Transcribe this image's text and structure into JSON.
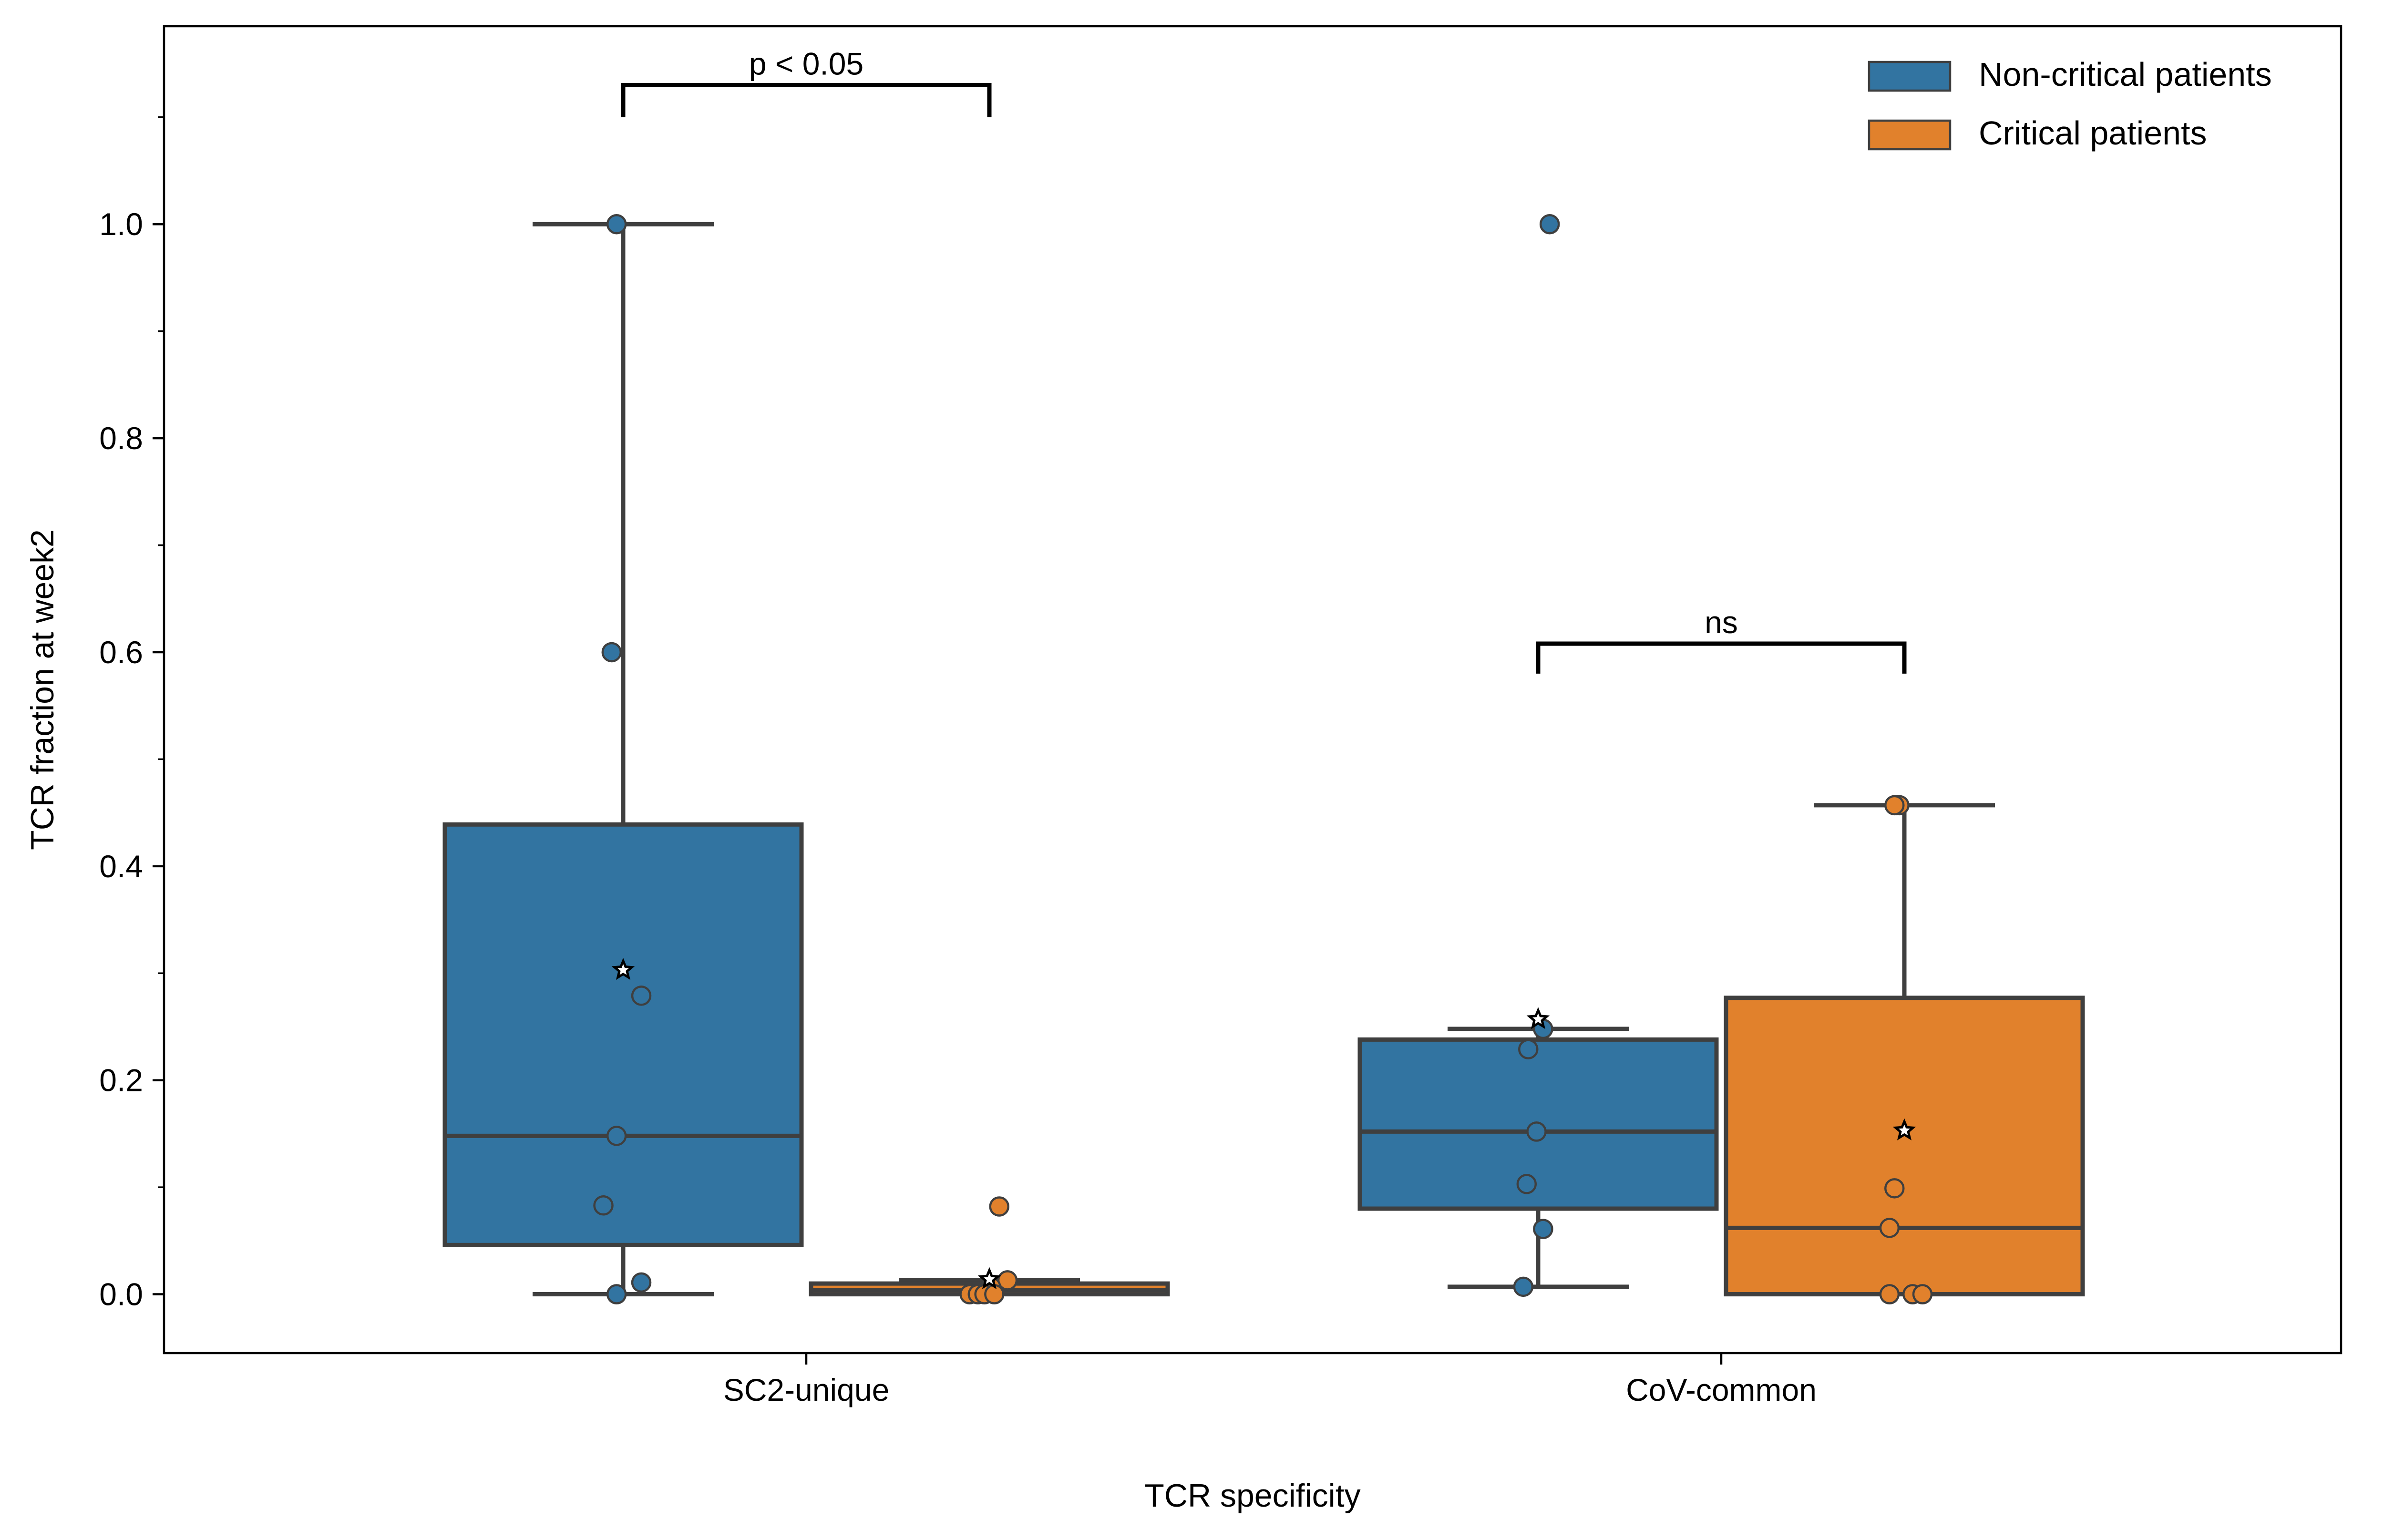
{
  "chart_data": {
    "type": "box",
    "xlabel": "TCR specificity",
    "ylabel": "TCR fraction at week2",
    "categories": [
      "SC2-unique",
      "CoV-common"
    ],
    "ylim": [
      -0.055,
      1.185
    ],
    "yticks": [
      0.0,
      0.2,
      0.4,
      0.6,
      0.8,
      1.0
    ],
    "ytick_labels": [
      "0.0",
      "0.2",
      "0.4",
      "0.6",
      "0.8",
      "1.0"
    ],
    "grid": false,
    "legend_position": "top-right",
    "series": [
      {
        "name": "Non-critical patients",
        "color": "#3274a1",
        "boxes": [
          {
            "category": "SC2-unique",
            "whisker_low": 0.0,
            "q1": 0.046,
            "median": 0.148,
            "q3": 0.439,
            "whisker_high": 1.0,
            "mean": 0.303,
            "points": [
              [
                -0.04,
                1.0
              ],
              [
                -0.07,
                0.6
              ],
              [
                0.11,
                0.279
              ],
              [
                -0.04,
                0.148
              ],
              [
                -0.12,
                0.083
              ],
              [
                0.11,
                0.011
              ],
              [
                -0.04,
                0.0
              ]
            ]
          },
          {
            "category": "CoV-common",
            "whisker_low": 0.007,
            "q1": 0.08,
            "median": 0.152,
            "q3": 0.238,
            "whisker_high": 0.248,
            "mean": 0.257,
            "points": [
              [
                0.07,
                1.0
              ],
              [
                0.03,
                0.248
              ],
              [
                -0.06,
                0.229
              ],
              [
                -0.01,
                0.152
              ],
              [
                -0.07,
                0.103
              ],
              [
                0.03,
                0.061
              ],
              [
                -0.09,
                0.007
              ]
            ]
          }
        ]
      },
      {
        "name": "Critical patients",
        "color": "#e1812c",
        "boxes": [
          {
            "category": "SC2-unique",
            "whisker_low": 0.0,
            "q1": 0.0,
            "median": 0.004,
            "q3": 0.01,
            "whisker_high": 0.013,
            "mean": 0.014,
            "points": [
              [
                0.06,
                0.082
              ],
              [
                0.11,
                0.013
              ],
              [
                0.01,
                0.007
              ],
              [
                -0.12,
                0.0
              ],
              [
                -0.07,
                0.0
              ],
              [
                -0.03,
                0.0
              ],
              [
                0.03,
                0.0
              ]
            ]
          },
          {
            "category": "CoV-common",
            "whisker_low": 0.0,
            "q1": 0.0,
            "median": 0.062,
            "q3": 0.277,
            "whisker_high": 0.457,
            "mean": 0.153,
            "points": [
              [
                -0.05,
                0.457
              ],
              [
                -0.03,
                0.457
              ],
              [
                -0.06,
                0.457
              ],
              [
                -0.06,
                0.099
              ],
              [
                -0.09,
                0.062
              ],
              [
                -0.09,
                0.0
              ],
              [
                0.05,
                0.0
              ],
              [
                0.11,
                0.0
              ]
            ]
          }
        ]
      }
    ],
    "annotations": [
      {
        "category": "SC2-unique",
        "text": "p < 0.05",
        "bracket_bottom": 1.1,
        "bracket_top": 1.13
      },
      {
        "category": "CoV-common",
        "text": "ns",
        "bracket_bottom": 0.58,
        "bracket_top": 0.608
      }
    ]
  }
}
